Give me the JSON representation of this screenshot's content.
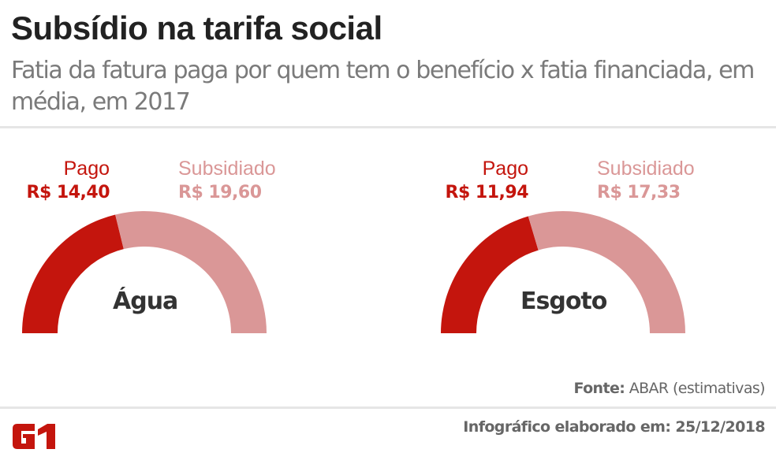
{
  "header": {
    "title": "Subsídio na tarifa social",
    "subtitle": "Fatia da fatura paga por quem tem o benefício x fatia financiada, em média, em 2017"
  },
  "colors": {
    "pago": "#c4150d",
    "subsidiado": "#da9797",
    "title": "#222222",
    "subtitle": "#7a7a7a"
  },
  "charts": [
    {
      "name": "Água",
      "pago_label": "Pago",
      "pago_value": "R$ 14,40",
      "subsidiado_label": "Subsidiado",
      "subsidiado_value": "R$ 19,60"
    },
    {
      "name": "Esgoto",
      "pago_label": "Pago",
      "pago_value": "R$ 11,94",
      "subsidiado_label": "Subsidiado",
      "subsidiado_value": "R$ 17,33"
    }
  ],
  "footer": {
    "source_label": "Fonte:",
    "source_value": " ABAR (estimativas)",
    "made_on": "Infográfico elaborado em: 25/12/2018",
    "logo": "G1"
  },
  "chart_data": [
    {
      "type": "pie",
      "subtype": "half-donut",
      "title": "Água",
      "categories": [
        "Pago",
        "Subsidiado"
      ],
      "values": [
        14.4,
        19.6
      ],
      "unit": "R$",
      "colors": [
        "#c4150d",
        "#da9797"
      ]
    },
    {
      "type": "pie",
      "subtype": "half-donut",
      "title": "Esgoto",
      "categories": [
        "Pago",
        "Subsidiado"
      ],
      "values": [
        11.94,
        17.33
      ],
      "unit": "R$",
      "colors": [
        "#c4150d",
        "#da9797"
      ]
    }
  ]
}
